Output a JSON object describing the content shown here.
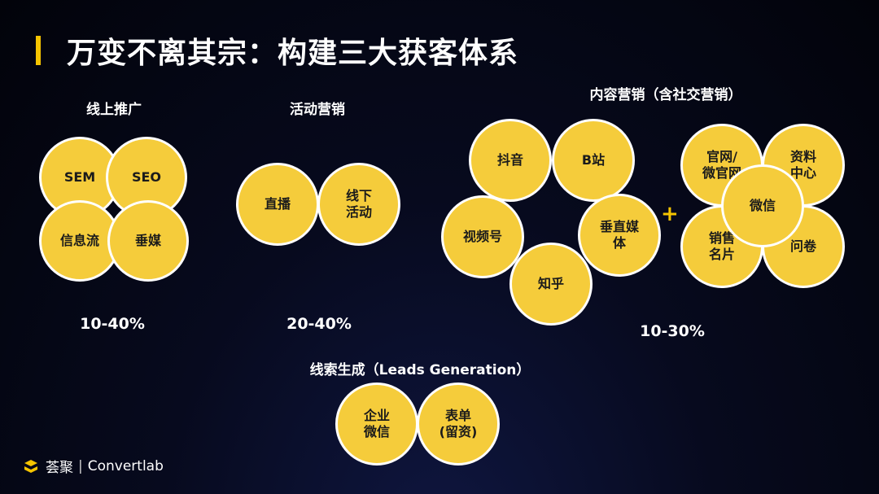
{
  "title": "万变不离其宗：构建三大获客体系",
  "groups": {
    "online": {
      "label": "线上推广",
      "percent": "10-40%",
      "items": [
        "SEM",
        "SEO",
        "信息流",
        "垂媒"
      ]
    },
    "event": {
      "label": "活动营销",
      "percent": "20-40%",
      "items": [
        "直播",
        "线下\n活动"
      ]
    },
    "content": {
      "label": "内容营销（含社交营销）",
      "percent": "10-30%",
      "items_left": [
        "抖音",
        "B站",
        "视频号",
        "垂直媒\n体",
        "知乎"
      ],
      "plus": "+",
      "items_right": [
        "官网/\n微官网",
        "资料\n中心",
        "销售\n名片",
        "问卷",
        "微信"
      ]
    },
    "leads": {
      "label": "线索生成（Leads Generation）",
      "items": [
        "企业\n微信",
        "表单\n(留资)"
      ]
    }
  },
  "logo": {
    "brand_cn": "荟聚",
    "separator": "|",
    "brand_en": "Convertlab"
  },
  "colors": {
    "accent": "#f5c400",
    "circle_fill": "#f5cc3b",
    "circle_border": "#ffffff"
  }
}
